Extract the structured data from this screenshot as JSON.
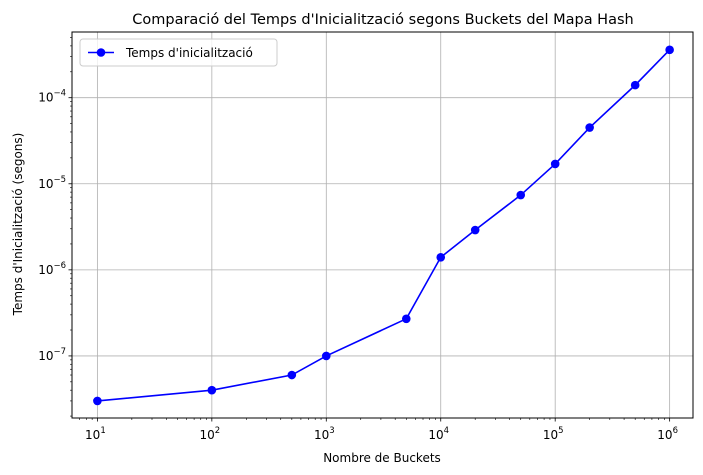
{
  "chart_data": {
    "type": "line",
    "title": "Comparació del Temps d'Inicialització segons Buckets del Mapa Hash",
    "xlabel": "Nombre de Buckets",
    "ylabel": "Temps d'Inicialització (segons)",
    "x_scale": "log",
    "y_scale": "log",
    "xlim": [
      6,
      1600000
    ],
    "ylim": [
      1.9e-08,
      0.00058
    ],
    "grid": true,
    "legend_position": "top-left",
    "x_ticks": [
      {
        "base": "10",
        "exp": "1",
        "value": 10
      },
      {
        "base": "10",
        "exp": "2",
        "value": 100
      },
      {
        "base": "10",
        "exp": "3",
        "value": 1000
      },
      {
        "base": "10",
        "exp": "4",
        "value": 10000
      },
      {
        "base": "10",
        "exp": "5",
        "value": 100000
      },
      {
        "base": "10",
        "exp": "6",
        "value": 1000000
      }
    ],
    "y_ticks": [
      {
        "base": "10",
        "exp": "−7",
        "value": 1e-07
      },
      {
        "base": "10",
        "exp": "−6",
        "value": 1e-06
      },
      {
        "base": "10",
        "exp": "−5",
        "value": 1e-05
      },
      {
        "base": "10",
        "exp": "−4",
        "value": 0.0001
      }
    ],
    "series": [
      {
        "name": "Temps d'inicialització",
        "color": "#0000ff",
        "marker": "circle",
        "x": [
          10,
          100,
          500,
          1000,
          5000,
          10000,
          20000,
          50000,
          100000,
          200000,
          500000,
          1000000
        ],
        "y": [
          3e-08,
          4e-08,
          6e-08,
          1e-07,
          2.7e-07,
          1.4e-06,
          2.9e-06,
          7.4e-06,
          1.7e-05,
          4.5e-05,
          0.00014,
          0.00036
        ]
      }
    ]
  }
}
